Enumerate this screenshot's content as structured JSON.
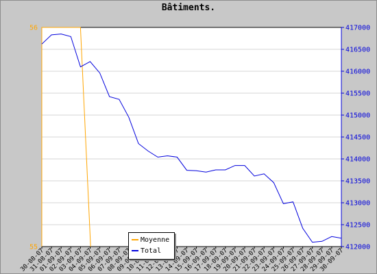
{
  "chart_data": {
    "type": "line",
    "title": "Bâtiments.",
    "categories": [
      "30-08-07",
      "31-08-07",
      "01-09-07",
      "02-09-07",
      "03-09-07",
      "04-09-07",
      "05-09-07",
      "06-09-07",
      "07-09-07",
      "08-09-07",
      "09-09-07",
      "10-09-07",
      "11-09-07",
      "12-09-07",
      "13-09-07",
      "14-09-07",
      "15-09-07",
      "16-09-07",
      "17-09-07",
      "18-09-07",
      "19-09-07",
      "20-09-07",
      "21-09-07",
      "22-09-07",
      "23-09-07",
      "24-09-07",
      "25-09-07",
      "26-09-07",
      "27-09-07",
      "28-09-07",
      "29-09-07",
      "30-09-07"
    ],
    "y_left": {
      "ylim": [
        55,
        56
      ],
      "ticks": [
        "55",
        "56"
      ],
      "color": "#ffa500"
    },
    "y_right": {
      "ylim": [
        412000,
        417000
      ],
      "ticks": [
        "412000",
        "412500",
        "413000",
        "413500",
        "414000",
        "414500",
        "415000",
        "415500",
        "416000",
        "416500",
        "417000"
      ],
      "color": "#0000dd"
    },
    "grid": true,
    "legend_position": "bottom-center",
    "series": [
      {
        "name": "Moyenne",
        "axis": "left",
        "color": "#ffa500",
        "values": [
          56,
          56,
          56,
          56,
          56,
          55,
          55,
          55,
          55,
          55,
          55,
          55,
          55,
          55,
          55,
          55,
          55,
          55,
          55,
          55,
          55,
          55,
          55,
          55,
          55,
          55,
          55,
          55,
          55,
          55,
          55,
          55
        ]
      },
      {
        "name": "Total",
        "axis": "right",
        "color": "#0000dd",
        "values": [
          416620,
          416830,
          416850,
          416790,
          416100,
          416220,
          415960,
          415420,
          415360,
          414950,
          414350,
          414180,
          414040,
          414070,
          414040,
          413740,
          413730,
          413700,
          413750,
          413750,
          413850,
          413850,
          413610,
          413660,
          413460,
          412980,
          413020,
          412420,
          412100,
          412120,
          412230,
          412190
        ]
      }
    ]
  }
}
